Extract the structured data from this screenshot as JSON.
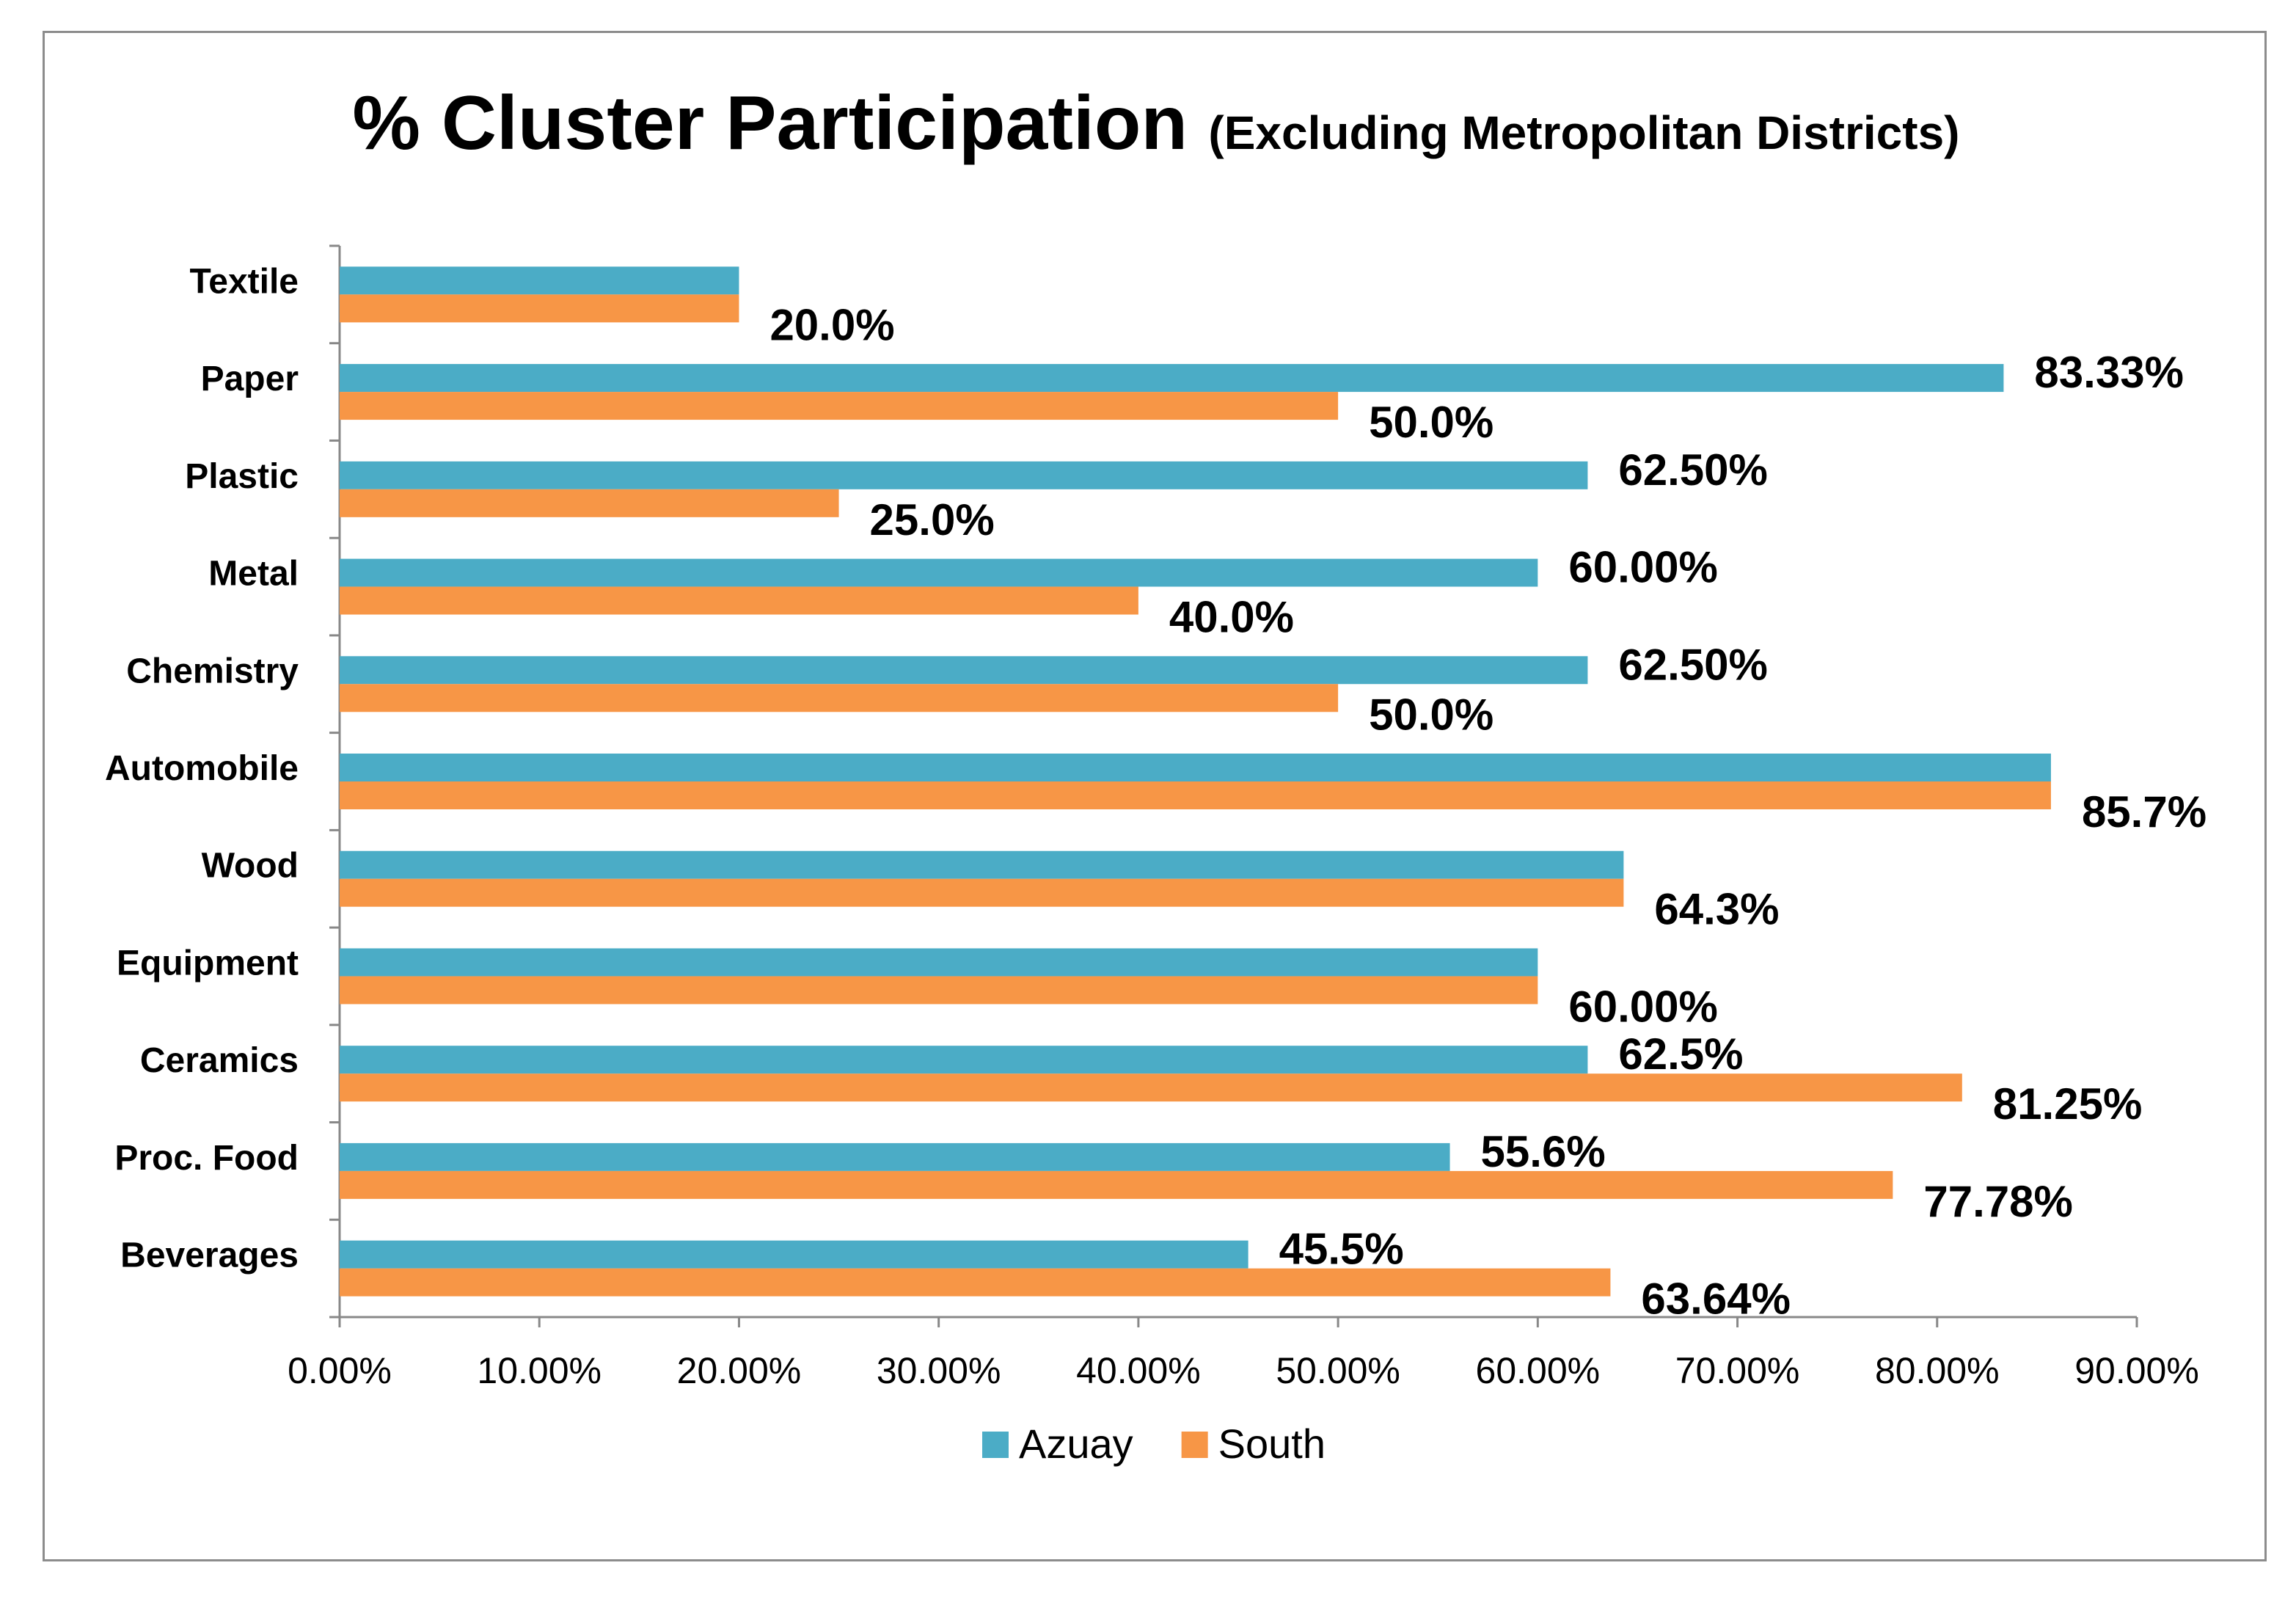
{
  "chart_data": {
    "type": "bar",
    "orientation": "horizontal",
    "title": "% Cluster Participation",
    "subtitle": "(Excluding  Metropolitan Districts)",
    "categories": [
      "Textile",
      "Paper",
      "Plastic",
      "Metal",
      "Chemistry",
      "Automobile",
      "Wood",
      "Equipment",
      "Ceramics",
      "Proc. Food",
      "Beverages"
    ],
    "series": [
      {
        "name": "Azuay",
        "color": "#4bacc6",
        "values": [
          20.0,
          83.33,
          62.5,
          60.0,
          62.5,
          85.7,
          64.3,
          60.0,
          62.5,
          55.6,
          45.5
        ],
        "labels": [
          "",
          "83.33%",
          "62.50%",
          "60.00%",
          "62.50%",
          "",
          "",
          "",
          "62.5%",
          "55.6%",
          "45.5%"
        ]
      },
      {
        "name": "South",
        "color": "#f79646",
        "values": [
          20.0,
          50.0,
          25.0,
          40.0,
          50.0,
          85.7,
          64.3,
          60.0,
          81.25,
          77.78,
          63.64
        ],
        "labels": [
          "20.0%",
          "50.0%",
          "25.0%",
          "40.0%",
          "50.0%",
          "85.7%",
          "64.3%",
          "60.00%",
          "81.25%",
          "77.78%",
          "63.64%"
        ]
      }
    ],
    "xlim": [
      0,
      90
    ],
    "xticks": [
      "0.00%",
      "10.00%",
      "20.00%",
      "30.00%",
      "40.00%",
      "50.00%",
      "60.00%",
      "70.00%",
      "80.00%",
      "90.00%"
    ],
    "xlabel": "",
    "ylabel": "",
    "grid": false,
    "legend_position": "bottom"
  }
}
